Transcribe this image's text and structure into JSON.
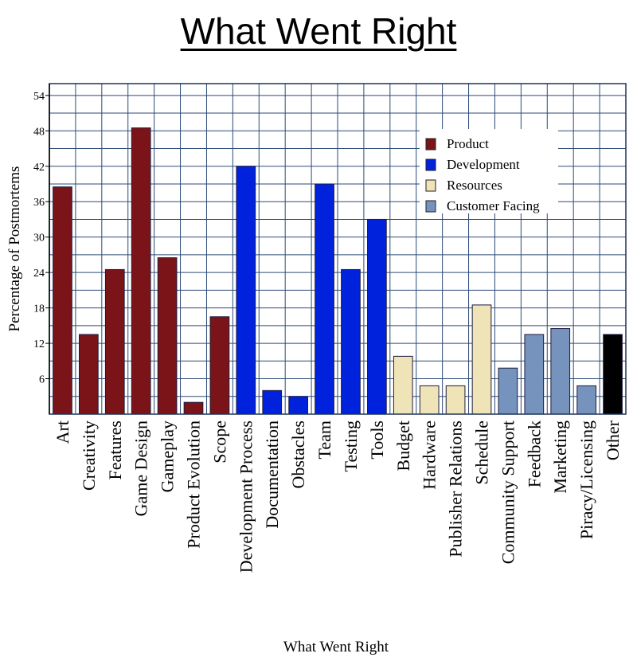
{
  "chart_data": {
    "type": "bar",
    "title": "What Went Right",
    "xlabel": "What Went Right",
    "ylabel": "Percentage of Postmortems",
    "ylim": [
      0,
      56
    ],
    "yticks": [
      6,
      12,
      18,
      24,
      30,
      36,
      42,
      48,
      54
    ],
    "grid": true,
    "legend_position": "top-right",
    "categories": [
      "Art",
      "Creativity",
      "Features",
      "Game Design",
      "Gameplay",
      "Product Evolution",
      "Scope",
      "Development Process",
      "Documentation",
      "Obstacles",
      "Team",
      "Testing",
      "Tools",
      "Budget",
      "Hardware",
      "Publisher Relations",
      "Schedule",
      "Community Support",
      "Feedback",
      "Marketing",
      "Piracy/Licensing",
      "Other"
    ],
    "values": [
      38.5,
      13.5,
      24.5,
      48.5,
      26.5,
      2,
      16.5,
      42,
      4,
      3,
      39,
      24.5,
      33,
      9.8,
      4.8,
      4.8,
      18.5,
      7.8,
      13.5,
      14.5,
      4.8,
      13.5
    ],
    "groups": [
      "Product",
      "Product",
      "Product",
      "Product",
      "Product",
      "Product",
      "Product",
      "Development",
      "Development",
      "Development",
      "Development",
      "Development",
      "Development",
      "Resources",
      "Resources",
      "Resources",
      "Resources",
      "Customer Facing",
      "Customer Facing",
      "Customer Facing",
      "Customer Facing",
      "Other"
    ],
    "legend": [
      {
        "name": "Product",
        "color": "#7b1418"
      },
      {
        "name": "Development",
        "color": "#0022dd"
      },
      {
        "name": "Resources",
        "color": "#efe3b8"
      },
      {
        "name": "Customer Facing",
        "color": "#7693bd"
      }
    ],
    "colors": {
      "Product": "#7b1418",
      "Development": "#0022dd",
      "Resources": "#efe3b8",
      "Customer Facing": "#7693bd",
      "Other": "#000000",
      "grid": "#2b4a78"
    }
  }
}
